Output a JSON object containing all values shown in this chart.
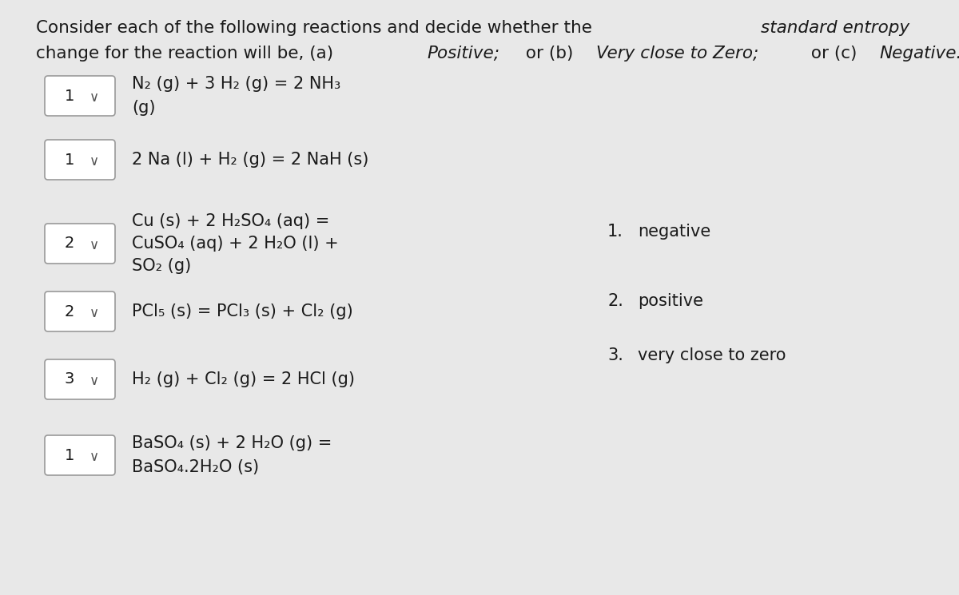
{
  "background_color": "#e8e8e8",
  "reactions": [
    {
      "number": "1",
      "equation_lines": [
        "N₂ (g) + 3 H₂ (g) = 2 NH₃",
        "(g)"
      ]
    },
    {
      "number": "1",
      "equation_lines": [
        "2 Na (l) + H₂ (g) = 2 NaH (s)"
      ]
    },
    {
      "number": "2",
      "equation_lines": [
        "Cu (s) + 2 H₂SO₄ (aq) =",
        "CuSO₄ (aq) + 2 H₂O (l) +",
        "SO₂ (g)"
      ]
    },
    {
      "number": "2",
      "equation_lines": [
        "PCl₅ (s) = PCl₃ (s) + Cl₂ (g)"
      ]
    },
    {
      "number": "3",
      "equation_lines": [
        "H₂ (g) + Cl₂ (g) = 2 HCl (g)"
      ]
    },
    {
      "number": "1",
      "equation_lines": [
        "BaSO₄ (s) + 2 H₂O (g) =",
        "BaSO₄.2H₂O (s)"
      ]
    }
  ],
  "answers": [
    {
      "num": "1.",
      "text": "negative"
    },
    {
      "num": "2.",
      "text": "positive"
    },
    {
      "num": "3.",
      "text": "very close to zero"
    }
  ],
  "box_color": "#ffffff",
  "box_edge_color": "#999999",
  "text_color": "#1a1a1a",
  "font_size_title": 15.5,
  "font_size_eq": 15,
  "font_size_box": 14,
  "font_size_answer": 15,
  "title_parts_line1": [
    {
      "text": "Consider each of the following reactions and decide whether the ",
      "style": "normal"
    },
    {
      "text": "standard entropy",
      "style": "italic"
    }
  ],
  "title_parts_line2": [
    {
      "text": "change for the reaction will be, (a) ",
      "style": "normal"
    },
    {
      "text": "Positive;",
      "style": "italic"
    },
    {
      "text": " or (b) ",
      "style": "normal"
    },
    {
      "text": "Very close to Zero;",
      "style": "italic"
    },
    {
      "text": " or (c) ",
      "style": "normal"
    },
    {
      "text": "Negative.",
      "style": "italic"
    }
  ]
}
